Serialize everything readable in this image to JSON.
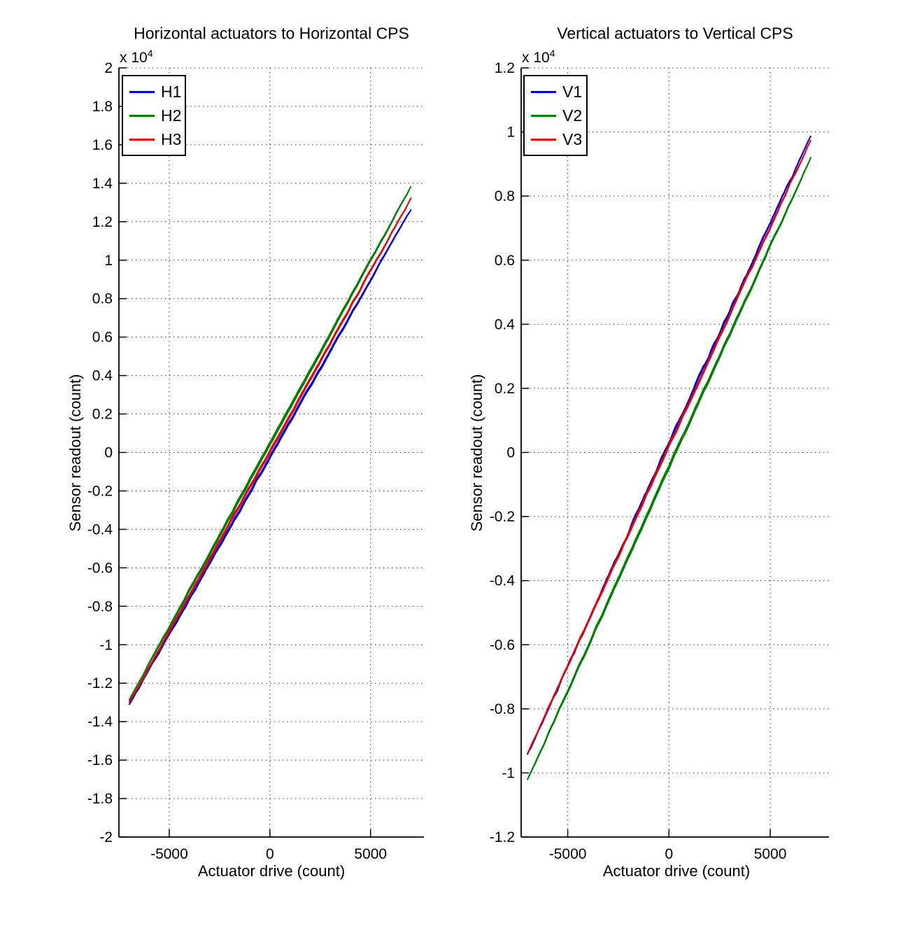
{
  "figure": {
    "background": "#ffffff",
    "grid_color": "#333333",
    "axis_color": "#000000"
  },
  "chart_data": [
    {
      "type": "line",
      "title": "Horizontal actuators to Horizontal CPS",
      "xlabel": "Actuator drive (count)",
      "ylabel": "Sensor readout (count)",
      "y_scale_label": "x 10",
      "y_scale_exponent": "4",
      "xlim": [
        -7500,
        7650
      ],
      "ylim": [
        -20000,
        20000
      ],
      "xticks": [
        -5000,
        0,
        5000
      ],
      "ytick_step": 2000,
      "ytick_divisor": 10000,
      "grid": true,
      "legend_position": "top-left",
      "series": [
        {
          "name": "H1",
          "color": "#0000dd",
          "x": [
            -7000,
            0,
            7000
          ],
          "y": [
            -13150,
            -250,
            12650
          ],
          "loop_gap": 110,
          "noise": 60
        },
        {
          "name": "H2",
          "color": "#008000",
          "x": [
            -7000,
            0,
            7000
          ],
          "y": [
            -12900,
            450,
            13800
          ],
          "loop_gap": 150,
          "noise": 55
        },
        {
          "name": "H3",
          "color": "#ee0000",
          "x": [
            -7000,
            0,
            7000
          ],
          "y": [
            -13050,
            50,
            13200
          ],
          "loop_gap": 110,
          "noise": 55
        }
      ]
    },
    {
      "type": "line",
      "title": "Vertical actuators to Vertical CPS",
      "xlabel": "Actuator drive (count)",
      "ylabel": "Sensor readout (count)",
      "y_scale_label": "x 10",
      "y_scale_exponent": "4",
      "xlim": [
        -7300,
        7900
      ],
      "ylim": [
        -12000,
        12000
      ],
      "xticks": [
        -5000,
        0,
        5000
      ],
      "ytick_step": 2000,
      "ytick_divisor": 10000,
      "grid": true,
      "legend_position": "top-left",
      "series": [
        {
          "name": "V1",
          "color": "#0000dd",
          "x": [
            -7000,
            0,
            7000
          ],
          "y": [
            -9450,
            300,
            9900
          ],
          "loop_gap": 60,
          "noise": 75
        },
        {
          "name": "V2",
          "color": "#008000",
          "x": [
            -7000,
            0,
            7000
          ],
          "y": [
            -10250,
            -450,
            9200
          ],
          "loop_gap": 100,
          "noise": 50
        },
        {
          "name": "V3",
          "color": "#ee0000",
          "x": [
            -7000,
            0,
            7000
          ],
          "y": [
            -9400,
            200,
            9750
          ],
          "loop_gap": 60,
          "noise": 50
        }
      ]
    }
  ]
}
